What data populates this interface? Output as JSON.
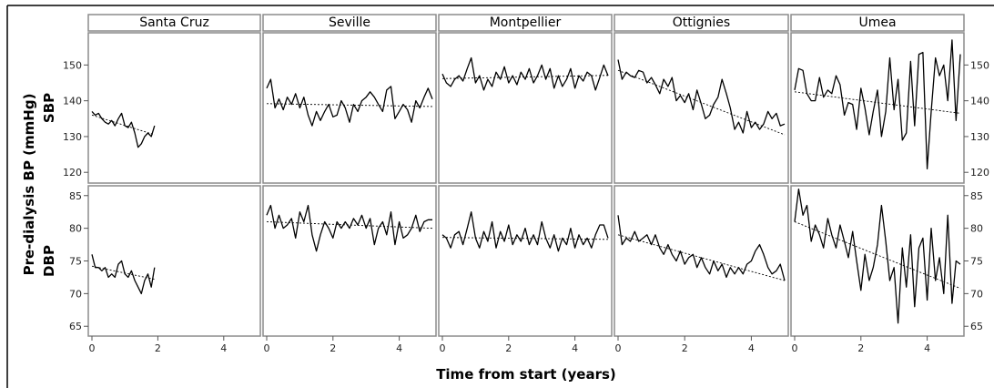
{
  "chart_data": {
    "type": "line",
    "facet_columns": [
      "Santa Cruz",
      "Seville",
      "Montpellier",
      "Ottignies",
      "Umea"
    ],
    "facet_rows": [
      "SBP",
      "DBP"
    ],
    "ylabel": "Pre-dialysis BP (mmHg)",
    "xlabel": "Time from start (years)",
    "xlim": [
      0,
      5
    ],
    "x_ticks": [
      0,
      2,
      4
    ],
    "rows": [
      {
        "name": "SBP",
        "ylim": [
          117,
          159
        ],
        "y_ticks": [
          120,
          130,
          140,
          150
        ]
      },
      {
        "name": "DBP",
        "ylim": [
          63.5,
          86.5
        ],
        "y_ticks": [
          65,
          70,
          75,
          80,
          85
        ]
      }
    ],
    "legend": "none",
    "grid": false,
    "panels": [
      {
        "site": "Santa Cruz",
        "measure": "SBP",
        "x": [
          0,
          0.1,
          0.2,
          0.3,
          0.4,
          0.5,
          0.6,
          0.7,
          0.8,
          0.9,
          1.0,
          1.1,
          1.2,
          1.3,
          1.4,
          1.5,
          1.6,
          1.7,
          1.8,
          1.9
        ],
        "y": [
          137,
          136,
          136.5,
          135,
          134,
          133.5,
          134.5,
          133,
          135,
          136.5,
          133,
          132.5,
          134,
          131,
          127,
          128,
          130,
          131,
          130,
          133
        ],
        "trend": {
          "x": [
            0,
            1.9
          ],
          "y": [
            136,
            130.5
          ]
        }
      },
      {
        "site": "Seville",
        "measure": "SBP",
        "x": [
          0,
          0.12,
          0.25,
          0.37,
          0.5,
          0.62,
          0.75,
          0.87,
          1.0,
          1.12,
          1.25,
          1.37,
          1.5,
          1.62,
          1.75,
          1.87,
          2.0,
          2.12,
          2.25,
          2.37,
          2.5,
          2.62,
          2.75,
          2.87,
          3.0,
          3.12,
          3.25,
          3.37,
          3.5,
          3.62,
          3.75,
          3.87,
          4.0,
          4.12,
          4.25,
          4.37,
          4.5,
          4.62,
          4.75,
          4.87,
          5.0
        ],
        "y": [
          143.5,
          146,
          138,
          140.5,
          137.5,
          141,
          139,
          142,
          138,
          141,
          136,
          133,
          137,
          134.5,
          137,
          139,
          135.5,
          136,
          140,
          138,
          134,
          139,
          137,
          140,
          141,
          142.5,
          141,
          139,
          137,
          143,
          144,
          135,
          137,
          139,
          137.5,
          134,
          140,
          138,
          141,
          143.5,
          140.5
        ],
        "trend": {
          "x": [
            0,
            5.0
          ],
          "y": [
            139.2,
            138.4
          ]
        }
      },
      {
        "site": "Montpellier",
        "measure": "SBP",
        "x": [
          0,
          0.12,
          0.25,
          0.37,
          0.5,
          0.62,
          0.75,
          0.87,
          1.0,
          1.12,
          1.25,
          1.37,
          1.5,
          1.62,
          1.75,
          1.87,
          2.0,
          2.12,
          2.25,
          2.37,
          2.5,
          2.62,
          2.75,
          2.87,
          3.0,
          3.12,
          3.25,
          3.37,
          3.5,
          3.62,
          3.75,
          3.87,
          4.0,
          4.12,
          4.25,
          4.37,
          4.5,
          4.62,
          4.75,
          4.87,
          5.0
        ],
        "y": [
          147.5,
          145,
          144,
          146,
          147,
          145.5,
          149,
          152,
          145,
          147,
          143,
          146,
          144,
          148,
          146,
          149.5,
          145,
          147,
          144.5,
          148,
          146,
          149,
          145,
          147,
          150,
          146,
          149,
          143.5,
          147,
          144,
          146,
          149,
          143.5,
          147,
          145.5,
          148,
          147,
          143,
          146.5,
          150,
          147
        ],
        "trend": {
          "x": [
            0,
            5.0
          ],
          "y": [
            146.2,
            147.1
          ]
        }
      },
      {
        "site": "Ottignies",
        "measure": "SBP",
        "x": [
          0,
          0.12,
          0.25,
          0.37,
          0.5,
          0.62,
          0.75,
          0.87,
          1.0,
          1.12,
          1.25,
          1.37,
          1.5,
          1.62,
          1.75,
          1.87,
          2.0,
          2.12,
          2.25,
          2.37,
          2.5,
          2.62,
          2.75,
          2.87,
          3.0,
          3.12,
          3.25,
          3.37,
          3.5,
          3.62,
          3.75,
          3.87,
          4.0,
          4.12,
          4.25,
          4.37,
          4.5,
          4.62,
          4.75,
          4.87,
          5.0
        ],
        "y": [
          151.5,
          146,
          148,
          147,
          146.5,
          148.5,
          148,
          145,
          146.5,
          144.5,
          142,
          146,
          144,
          146.5,
          140,
          141.5,
          139.5,
          142,
          137.5,
          143,
          139,
          135,
          136,
          139,
          141,
          146,
          142,
          138,
          132,
          134,
          131,
          137,
          132.5,
          134,
          132,
          133.5,
          137,
          135,
          136.5,
          133,
          133.5
        ],
        "trend": {
          "x": [
            0,
            5.0
          ],
          "y": [
            148.5,
            130.5
          ]
        }
      },
      {
        "site": "Umea",
        "measure": "SBP",
        "x": [
          0,
          0.12,
          0.25,
          0.37,
          0.5,
          0.62,
          0.75,
          0.87,
          1.0,
          1.12,
          1.25,
          1.37,
          1.5,
          1.62,
          1.75,
          1.87,
          2.0,
          2.12,
          2.25,
          2.37,
          2.5,
          2.62,
          2.75,
          2.87,
          3.0,
          3.12,
          3.25,
          3.37,
          3.5,
          3.62,
          3.75,
          3.87,
          4.0,
          4.12,
          4.25,
          4.37,
          4.5,
          4.62,
          4.75,
          4.87,
          5.0
        ],
        "y": [
          143,
          149,
          148.5,
          142,
          140,
          140,
          146.5,
          141,
          143,
          142,
          147,
          144.5,
          136,
          139.5,
          139,
          132,
          143.5,
          138,
          130.5,
          137,
          143,
          130,
          137,
          152,
          137.5,
          146,
          129,
          131,
          151,
          133,
          153,
          153.5,
          121,
          137,
          152,
          147,
          150,
          140,
          157,
          134.5,
          153
        ],
        "trend": {
          "x": [
            0,
            5.0
          ],
          "y": [
            142.5,
            136.5
          ]
        }
      },
      {
        "site": "Santa Cruz",
        "measure": "DBP",
        "x": [
          0,
          0.1,
          0.2,
          0.3,
          0.4,
          0.5,
          0.6,
          0.7,
          0.8,
          0.9,
          1.0,
          1.1,
          1.2,
          1.3,
          1.4,
          1.5,
          1.6,
          1.7,
          1.8,
          1.9
        ],
        "y": [
          76,
          74,
          74,
          73.5,
          74,
          72.5,
          73,
          72.5,
          74.5,
          75,
          73,
          72.5,
          73.5,
          72,
          71,
          70,
          72,
          73,
          71,
          74
        ],
        "trend": {
          "x": [
            0,
            1.9
          ],
          "y": [
            74.2,
            72.2
          ]
        }
      },
      {
        "site": "Seville",
        "measure": "DBP",
        "x": [
          0,
          0.12,
          0.25,
          0.37,
          0.5,
          0.62,
          0.75,
          0.87,
          1.0,
          1.12,
          1.25,
          1.37,
          1.5,
          1.62,
          1.75,
          1.87,
          2.0,
          2.12,
          2.25,
          2.37,
          2.5,
          2.62,
          2.75,
          2.87,
          3.0,
          3.12,
          3.25,
          3.37,
          3.5,
          3.62,
          3.75,
          3.87,
          4.0,
          4.12,
          4.25,
          4.37,
          4.5,
          4.62,
          4.75,
          4.87,
          5.0
        ],
        "y": [
          82,
          83.5,
          80,
          82,
          80,
          80.5,
          81.5,
          78.5,
          82.5,
          81,
          83.5,
          79,
          76.5,
          79,
          81,
          80,
          78.5,
          81,
          80,
          81,
          80,
          81.5,
          80.5,
          82,
          80,
          81.5,
          77.5,
          80,
          81,
          79,
          82.5,
          77.5,
          81,
          78.5,
          79,
          80,
          82,
          79.5,
          81,
          81.3,
          81.3
        ],
        "trend": {
          "x": [
            0,
            5.0
          ],
          "y": [
            81,
            80
          ]
        }
      },
      {
        "site": "Montpellier",
        "measure": "DBP",
        "x": [
          0,
          0.12,
          0.25,
          0.37,
          0.5,
          0.62,
          0.75,
          0.87,
          1.0,
          1.12,
          1.25,
          1.37,
          1.5,
          1.62,
          1.75,
          1.87,
          2.0,
          2.12,
          2.25,
          2.37,
          2.5,
          2.62,
          2.75,
          2.87,
          3.0,
          3.12,
          3.25,
          3.37,
          3.5,
          3.62,
          3.75,
          3.87,
          4.0,
          4.12,
          4.25,
          4.37,
          4.5,
          4.62,
          4.75,
          4.87,
          5.0
        ],
        "y": [
          79,
          78.5,
          77,
          79,
          79.5,
          77.5,
          80,
          82.5,
          78.5,
          77,
          79.5,
          78,
          81,
          77,
          79.5,
          78,
          80.5,
          77.5,
          79,
          78,
          80,
          77.5,
          79,
          77.5,
          81,
          78.5,
          77,
          79,
          76.5,
          78.5,
          77.5,
          80,
          77,
          79,
          77.5,
          78.5,
          77,
          79,
          80.5,
          80.5,
          78.5
        ],
        "trend": {
          "x": [
            0,
            5.0
          ],
          "y": [
            78.6,
            78.3
          ]
        }
      },
      {
        "site": "Ottignies",
        "measure": "DBP",
        "x": [
          0,
          0.12,
          0.25,
          0.37,
          0.5,
          0.62,
          0.75,
          0.87,
          1.0,
          1.12,
          1.25,
          1.37,
          1.5,
          1.62,
          1.75,
          1.87,
          2.0,
          2.12,
          2.25,
          2.37,
          2.5,
          2.62,
          2.75,
          2.87,
          3.0,
          3.12,
          3.25,
          3.37,
          3.5,
          3.62,
          3.75,
          3.87,
          4.0,
          4.12,
          4.25,
          4.37,
          4.5,
          4.62,
          4.75,
          4.87,
          5.0
        ],
        "y": [
          82,
          77.5,
          78.5,
          78,
          79.5,
          78,
          78.5,
          79,
          77.5,
          79,
          77,
          76,
          77.5,
          76,
          75,
          76.5,
          74.5,
          75.5,
          76,
          74,
          75.5,
          74,
          73,
          75,
          73.5,
          74.5,
          72.5,
          74,
          73,
          74,
          73,
          74.5,
          75,
          76.5,
          77.5,
          76,
          74,
          73,
          73.5,
          74.5,
          72
        ],
        "trend": {
          "x": [
            0,
            5.0
          ],
          "y": [
            79,
            72
          ]
        }
      },
      {
        "site": "Umea",
        "measure": "DBP",
        "x": [
          0,
          0.12,
          0.25,
          0.37,
          0.5,
          0.62,
          0.75,
          0.87,
          1.0,
          1.12,
          1.25,
          1.37,
          1.5,
          1.62,
          1.75,
          1.87,
          2.0,
          2.12,
          2.25,
          2.37,
          2.5,
          2.62,
          2.75,
          2.87,
          3.0,
          3.12,
          3.25,
          3.37,
          3.5,
          3.62,
          3.75,
          3.87,
          4.0,
          4.12,
          4.25,
          4.37,
          4.5,
          4.62,
          4.75,
          4.87,
          5.0
        ],
        "y": [
          81,
          86,
          82,
          83.5,
          78,
          80.5,
          79,
          77,
          81.5,
          79,
          77,
          80.5,
          78,
          75.5,
          79.5,
          75,
          70.5,
          76,
          72,
          74,
          77.5,
          83.5,
          78,
          72,
          74,
          65.5,
          77,
          71,
          79,
          68,
          77,
          78.5,
          69,
          80,
          72,
          75.5,
          70,
          82,
          68.5,
          75,
          74.5
        ],
        "trend": {
          "x": [
            0,
            5.0
          ],
          "y": [
            81,
            70.8
          ]
        }
      }
    ]
  }
}
